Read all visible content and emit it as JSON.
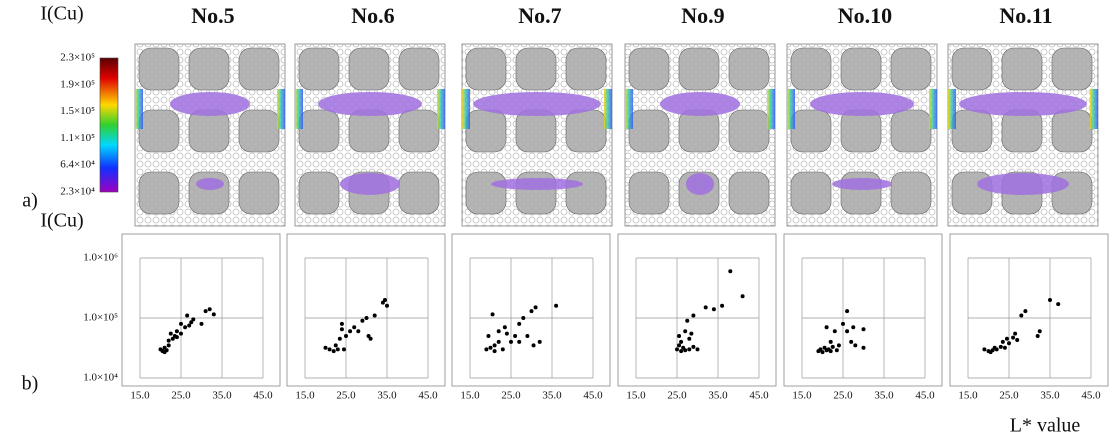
{
  "panel_labels": [
    "a)",
    "b)"
  ],
  "colorbar": {
    "title": "I(Cu)",
    "ticks": [
      {
        "value": 230000,
        "label": "2.3×10⁵"
      },
      {
        "value": 190000,
        "label": "1.9×10⁵"
      },
      {
        "value": 150000,
        "label": "1.5×10⁵"
      },
      {
        "value": 110000,
        "label": "1.1×10⁵"
      },
      {
        "value": 64000,
        "label": "6.4×10⁴"
      },
      {
        "value": 23000,
        "label": "2.3×10⁴"
      }
    ]
  },
  "y_axis": {
    "label": "I(Cu)",
    "log_scale": true,
    "ylim": [
      10000,
      1000000
    ],
    "yticks": [
      {
        "value": 1000000,
        "label": "1.0×10⁶"
      },
      {
        "value": 100000,
        "label": "1.0×10⁵"
      },
      {
        "value": 10000,
        "label": "1.0×10⁴"
      }
    ]
  },
  "x_axis_label": "L* value",
  "chart_data": [
    {
      "type": "scatter",
      "title": "No.5",
      "color": "#000000",
      "grid": true,
      "xlim": [
        15,
        45
      ],
      "xticks": [
        {
          "value": 15,
          "label": "15.0"
        },
        {
          "value": 25,
          "label": "25.0"
        },
        {
          "value": 35,
          "label": "35.0"
        },
        {
          "value": 45,
          "label": "45.0"
        }
      ],
      "x": [
        20,
        20.5,
        21,
        21.5,
        22,
        22,
        23,
        23.5,
        24,
        24,
        25,
        25,
        26,
        26.5,
        27,
        27.5,
        28,
        30,
        31,
        32,
        33,
        21,
        22.5
      ],
      "y": [
        30000,
        28000,
        32000,
        29000,
        35000,
        42000,
        45000,
        50000,
        48000,
        60000,
        55000,
        80000,
        70000,
        110000,
        75000,
        85000,
        95000,
        80000,
        130000,
        140000,
        115000,
        27000,
        55000
      ]
    },
    {
      "type": "scatter",
      "title": "No.6",
      "color": "#000000",
      "grid": true,
      "xlim": [
        15,
        45
      ],
      "xticks": [
        {
          "value": 15,
          "label": "15.0"
        },
        {
          "value": 25,
          "label": "25.0"
        },
        {
          "value": 35,
          "label": "35.0"
        },
        {
          "value": 45,
          "label": "45.0"
        }
      ],
      "x": [
        20,
        21,
        22,
        23,
        23.5,
        24,
        24,
        24.5,
        26,
        27,
        28,
        29,
        30,
        30.5,
        31,
        32,
        34,
        35,
        34.5,
        25,
        22.5
      ],
      "y": [
        32000,
        30000,
        28000,
        30000,
        45000,
        65000,
        80000,
        30000,
        60000,
        70000,
        60000,
        90000,
        100000,
        50000,
        45000,
        110000,
        180000,
        160000,
        200000,
        50000,
        35000
      ]
    },
    {
      "type": "scatter",
      "title": "No.7",
      "color": "#000000",
      "grid": true,
      "xlim": [
        15,
        45
      ],
      "xticks": [
        {
          "value": 15,
          "label": "15.0"
        },
        {
          "value": 25,
          "label": "25.0"
        },
        {
          "value": 35,
          "label": "35.0"
        },
        {
          "value": 45,
          "label": "45.0"
        }
      ],
      "x": [
        19,
        19.5,
        20,
        20.5,
        21,
        21,
        22,
        22,
        23,
        23.5,
        24,
        25,
        26,
        27,
        27,
        28,
        29,
        30,
        31,
        32,
        30.5,
        36
      ],
      "y": [
        30000,
        50000,
        32000,
        115000,
        28000,
        35000,
        40000,
        60000,
        30000,
        70000,
        55000,
        40000,
        50000,
        40000,
        80000,
        100000,
        50000,
        130000,
        150000,
        40000,
        35000,
        160000
      ]
    },
    {
      "type": "scatter",
      "title": "No.9",
      "color": "#000000",
      "grid": true,
      "xlim": [
        15,
        45
      ],
      "xticks": [
        {
          "value": 15,
          "label": "15.0"
        },
        {
          "value": 25,
          "label": "25.0"
        },
        {
          "value": 35,
          "label": "35.0"
        },
        {
          "value": 45,
          "label": "45.0"
        }
      ],
      "x": [
        25,
        25.5,
        26,
        26,
        26.5,
        27,
        27,
        27.5,
        28,
        28,
        28.5,
        29,
        29,
        30,
        32,
        34,
        36,
        38,
        41,
        25.5
      ],
      "y": [
        30000,
        35000,
        28000,
        40000,
        32000,
        29000,
        60000,
        90000,
        45000,
        30000,
        55000,
        110000,
        33000,
        30000,
        150000,
        140000,
        160000,
        600000,
        230000,
        50000
      ]
    },
    {
      "type": "scatter",
      "title": "No.10",
      "color": "#000000",
      "grid": true,
      "xlim": [
        15,
        45
      ],
      "xticks": [
        {
          "value": 15,
          "label": "15.0"
        },
        {
          "value": 25,
          "label": "25.0"
        },
        {
          "value": 35,
          "label": "35.0"
        },
        {
          "value": 45,
          "label": "45.0"
        }
      ],
      "x": [
        19,
        19.5,
        20,
        20.5,
        21,
        21,
        21.5,
        22,
        22,
        22.5,
        23,
        23.5,
        24,
        25,
        26,
        26,
        27,
        28,
        30,
        30,
        27.5
      ],
      "y": [
        28000,
        30000,
        27000,
        32000,
        29000,
        70000,
        30000,
        40000,
        28000,
        33000,
        60000,
        29000,
        35000,
        80000,
        130000,
        60000,
        40000,
        35000,
        65000,
        32000,
        70000
      ]
    },
    {
      "type": "scatter",
      "title": "No.11",
      "color": "#000000",
      "grid": true,
      "xlim": [
        15,
        45
      ],
      "xticks": [
        {
          "value": 15,
          "label": "15.0"
        },
        {
          "value": 25,
          "label": "25.0"
        },
        {
          "value": 35,
          "label": "35.0"
        },
        {
          "value": 45,
          "label": "45.0"
        }
      ],
      "x": [
        19,
        20,
        21,
        21.5,
        22,
        23,
        24,
        24.5,
        25,
        26,
        26.5,
        27,
        28,
        29,
        32,
        32.5,
        35,
        37,
        20.5,
        23.5
      ],
      "y": [
        30000,
        28000,
        29000,
        32000,
        30000,
        33000,
        32000,
        45000,
        38000,
        47000,
        55000,
        43000,
        110000,
        130000,
        50000,
        60000,
        200000,
        170000,
        27000,
        40000
      ]
    }
  ]
}
